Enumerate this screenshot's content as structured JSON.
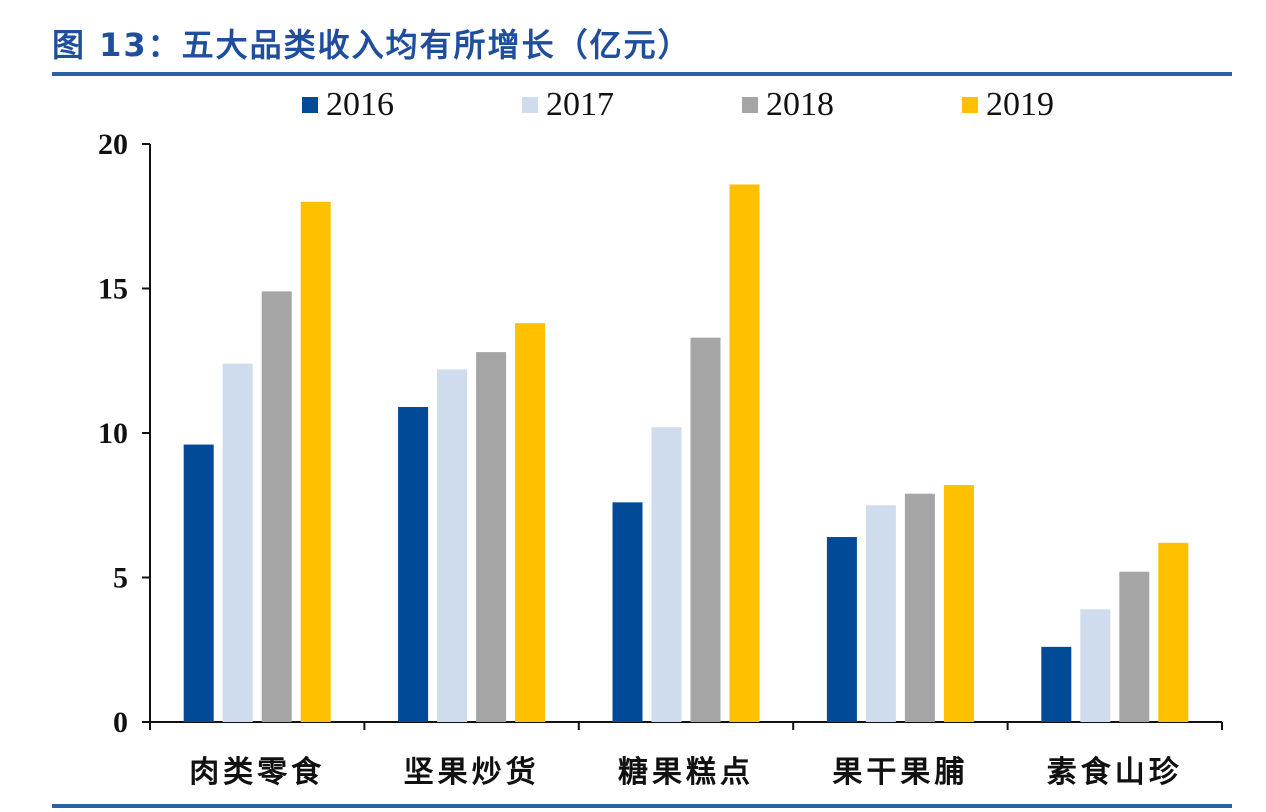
{
  "title": "图 13：五大品类收入均有所增长（亿元）",
  "chart_data": {
    "type": "bar",
    "title": "图 13：五大品类收入均有所增长（亿元）",
    "categories": [
      "肉类零食",
      "坚果炒货",
      "糖果糕点",
      "果干果脯",
      "素食山珍"
    ],
    "series": [
      {
        "name": "2016",
        "color": "#004a98",
        "values": [
          9.6,
          10.9,
          7.6,
          6.4,
          2.6
        ]
      },
      {
        "name": "2017",
        "color": "#cfdced",
        "values": [
          12.4,
          12.2,
          10.2,
          7.5,
          3.9
        ]
      },
      {
        "name": "2018",
        "color": "#a5a5a5",
        "values": [
          14.9,
          12.8,
          13.3,
          7.9,
          5.2
        ]
      },
      {
        "name": "2019",
        "color": "#ffc000",
        "values": [
          18.0,
          13.8,
          18.6,
          8.2,
          6.2
        ]
      }
    ],
    "ylim": [
      0,
      20
    ],
    "yticks": [
      0,
      5,
      10,
      15,
      20
    ],
    "xlabel": "",
    "ylabel": "",
    "grid": false,
    "legend_position": "top"
  }
}
